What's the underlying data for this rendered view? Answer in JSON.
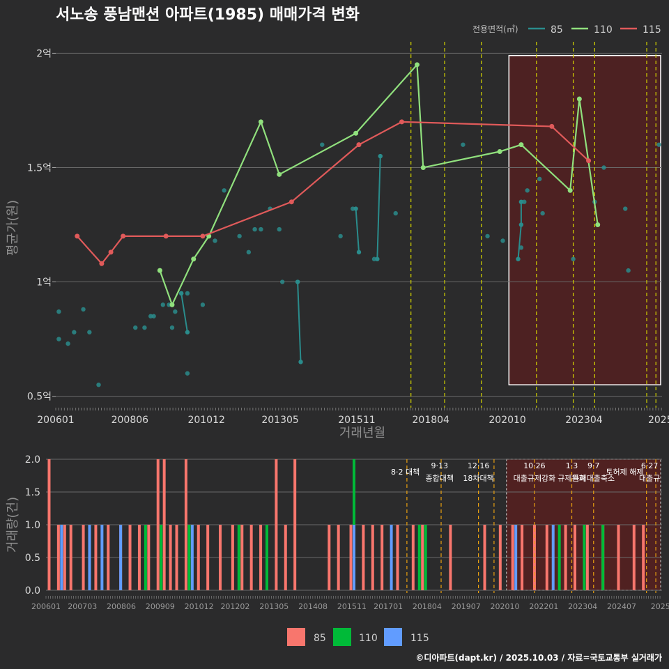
{
  "colors": {
    "background": "#2b2b2c",
    "s85_line": "#2a8c8c",
    "s110_line": "#90e07d",
    "s115_line": "#e05a5a",
    "bar_85": "#f8766d",
    "bar_110": "#00ba38",
    "bar_115": "#619cff",
    "highlight": "#5a1f1f",
    "vline_main": "#d4d400",
    "vline_sub": "#e8a010"
  },
  "title": "서노송 풍남맨션 아파트(1985) 매매가격 변화",
  "legend": {
    "title": "전용면적(㎡)",
    "items": [
      {
        "label": "85",
        "color": "#2a8c8c"
      },
      {
        "label": "110",
        "color": "#90e07d"
      },
      {
        "label": "115",
        "color": "#e05a5a"
      }
    ]
  },
  "bottom_legend": [
    {
      "label": "85",
      "color": "#f8766d"
    },
    {
      "label": "110",
      "color": "#00ba38"
    },
    {
      "label": "115",
      "color": "#619cff"
    }
  ],
  "caption": "©디아파트(dapt.kr) / 2025.10.03 / 자료=국토교통부 실거래가",
  "chart_data": [
    {
      "type": "line",
      "title": "서노송 풍남맨션 아파트(1985) 매매가격 변화",
      "xlabel": "거래년월",
      "ylabel": "평균가(원)",
      "xlim": [
        2006.0,
        2025.8
      ],
      "ylim": [
        0.5,
        2.0
      ],
      "x_tick_values": [
        2006.0,
        2008.42,
        2010.92,
        2013.33,
        2015.83,
        2018.25,
        2020.75,
        2023.25,
        2025.75
      ],
      "x_tick_labels": [
        "200601",
        "200806",
        "201012",
        "201305",
        "201511",
        "201804",
        "202010",
        "202304",
        "2025"
      ],
      "y_tick_values": [
        0.5,
        1.0,
        1.5,
        2.0
      ],
      "y_tick_labels": [
        "0.5억",
        "1억",
        "1.5억",
        "2억"
      ],
      "vlines": [
        2017.6,
        2018.7,
        2019.9,
        2021.7,
        2022.9,
        2023.6,
        2025.3,
        2025.6
      ],
      "highlight_range": [
        2020.8,
        2025.8
      ],
      "series": [
        {
          "name": "85",
          "mode": "points",
          "points": [
            [
              2006.1,
              0.87
            ],
            [
              2006.1,
              0.75
            ],
            [
              2006.4,
              0.73
            ],
            [
              2006.6,
              0.78
            ],
            [
              2006.9,
              0.88
            ],
            [
              2007.1,
              0.78
            ],
            [
              2007.4,
              0.55
            ],
            [
              2008.6,
              0.8
            ],
            [
              2008.9,
              0.8
            ],
            [
              2009.1,
              0.85
            ],
            [
              2009.2,
              0.85
            ],
            [
              2009.5,
              0.9
            ],
            [
              2009.7,
              0.9
            ],
            [
              2009.8,
              0.8
            ],
            [
              2009.8,
              0.9
            ],
            [
              2009.9,
              0.87
            ],
            [
              2010.1,
              0.95
            ],
            [
              2010.3,
              0.95
            ],
            [
              2010.3,
              0.6
            ],
            [
              2010.8,
              0.9
            ],
            [
              2011.2,
              1.18
            ],
            [
              2011.5,
              1.4
            ],
            [
              2012.0,
              1.2
            ],
            [
              2012.3,
              1.13
            ],
            [
              2012.5,
              1.23
            ],
            [
              2012.7,
              1.23
            ],
            [
              2013.0,
              1.32
            ],
            [
              2013.3,
              1.23
            ],
            [
              2013.4,
              1.0
            ],
            [
              2013.9,
              1.0
            ],
            [
              2014.7,
              1.6
            ],
            [
              2015.3,
              1.2
            ],
            [
              2015.7,
              1.32
            ],
            [
              2016.4,
              1.1
            ],
            [
              2017.1,
              1.3
            ],
            [
              2019.3,
              1.6
            ],
            [
              2020.1,
              1.2
            ],
            [
              2020.6,
              1.18
            ],
            [
              2021.2,
              1.15
            ],
            [
              2021.3,
              1.35
            ],
            [
              2021.4,
              1.4
            ],
            [
              2021.8,
              1.45
            ],
            [
              2021.9,
              1.3
            ],
            [
              2022.9,
              1.1
            ],
            [
              2023.6,
              1.35
            ],
            [
              2023.9,
              1.5
            ],
            [
              2024.6,
              1.32
            ],
            [
              2024.7,
              1.05
            ],
            [
              2025.7,
              1.6
            ]
          ]
        },
        {
          "name": "85",
          "mode": "segments",
          "segments": [
            [
              [
                2010.1,
                0.95
              ],
              [
                2010.3,
                0.78
              ]
            ],
            [
              [
                2013.9,
                1.0
              ],
              [
                2014.0,
                0.65
              ]
            ],
            [
              [
                2015.8,
                1.32
              ],
              [
                2015.9,
                1.13
              ]
            ],
            [
              [
                2016.5,
                1.1
              ],
              [
                2016.6,
                1.55
              ]
            ],
            [
              [
                2021.1,
                1.1
              ],
              [
                2021.2,
                1.25
              ],
              [
                2021.2,
                1.35
              ]
            ]
          ]
        },
        {
          "name": "110",
          "mode": "line",
          "points": [
            [
              2009.4,
              1.05
            ],
            [
              2009.8,
              0.9
            ],
            [
              2010.5,
              1.1
            ],
            [
              2011.0,
              1.2
            ],
            [
              2012.7,
              1.7
            ],
            [
              2013.3,
              1.47
            ],
            [
              2015.8,
              1.65
            ],
            [
              2017.8,
              1.95
            ],
            [
              2018.0,
              1.5
            ],
            [
              2020.5,
              1.57
            ],
            [
              2021.2,
              1.6
            ],
            [
              2022.8,
              1.4
            ],
            [
              2023.1,
              1.8
            ],
            [
              2023.7,
              1.25
            ]
          ]
        },
        {
          "name": "115",
          "mode": "line",
          "points": [
            [
              2006.7,
              1.2
            ],
            [
              2007.5,
              1.08
            ],
            [
              2007.8,
              1.13
            ],
            [
              2008.2,
              1.2
            ],
            [
              2009.6,
              1.2
            ],
            [
              2010.8,
              1.2
            ],
            [
              2013.7,
              1.35
            ],
            [
              2015.9,
              1.6
            ],
            [
              2017.3,
              1.7
            ],
            [
              2022.2,
              1.68
            ],
            [
              2023.4,
              1.53
            ]
          ]
        }
      ]
    },
    {
      "type": "bar",
      "xlabel": "",
      "ylabel": "거래량(건)",
      "xlim": [
        2006.0,
        2025.8
      ],
      "ylim": [
        0,
        2.0
      ],
      "y_tick_values": [
        0,
        0.5,
        1.0,
        1.5,
        2.0
      ],
      "y_tick_labels": [
        "0.0",
        "0.5",
        "1.0",
        "1.5",
        "2.0"
      ],
      "x_tick_values": [
        2006.0,
        2007.17,
        2008.42,
        2009.67,
        2010.92,
        2012.08,
        2013.33,
        2014.58,
        2015.83,
        2017.0,
        2018.25,
        2019.5,
        2020.75,
        2022.0,
        2023.25,
        2024.5,
        2025.75
      ],
      "x_tick_labels": [
        "200601",
        "200703",
        "200806",
        "200909",
        "201012",
        "201202",
        "201305",
        "201408",
        "201511",
        "201701",
        "201804",
        "201907",
        "202010",
        "202201",
        "202304",
        "202407",
        "2025"
      ],
      "vlines": [
        2017.6,
        2018.7,
        2019.9,
        2020.4,
        2021.7,
        2022.9,
        2023.6,
        2025.3,
        2025.6
      ],
      "highlight_range": [
        2020.8,
        2025.8
      ],
      "annotations": [
        {
          "x": 2017.55,
          "date": "",
          "text": "8·2 대책"
        },
        {
          "x": 2018.65,
          "date": "9·13",
          "text": "종합대책"
        },
        {
          "x": 2019.9,
          "date": "12·16",
          "text": "18차대책"
        },
        {
          "x": 2021.7,
          "date": "10·26",
          "text": "대출규제강화"
        },
        {
          "x": 2022.9,
          "date": "1·3",
          "text": "규제완화"
        },
        {
          "x": 2023.6,
          "date": "9·7",
          "text": "특례대출축소"
        },
        {
          "x": 2024.6,
          "date": "",
          "text": "토허제 해제"
        },
        {
          "x": 2025.4,
          "date": "6·27",
          "text": "대출규"
        }
      ],
      "series": [
        {
          "name": "85",
          "x": [
            2006.1,
            2006.4,
            2006.6,
            2006.8,
            2007.2,
            2007.4,
            2007.6,
            2008.0,
            2008.4,
            2008.7,
            2009.0,
            2009.3,
            2009.6,
            2009.8,
            2010.0,
            2010.2,
            2010.5,
            2010.9,
            2011.2,
            2011.6,
            2012.0,
            2012.3,
            2012.6,
            2012.9,
            2013.4,
            2013.7,
            2014.0,
            2015.1,
            2015.4,
            2015.8,
            2016.2,
            2016.5,
            2016.8,
            2017.3,
            2017.8,
            2018.1,
            2019.0,
            2020.1,
            2020.6,
            2021.0,
            2021.3,
            2021.7,
            2022.1,
            2022.7,
            2023.0,
            2023.4,
            2023.9,
            2024.4,
            2024.9,
            2025.2
          ],
          "values": [
            2,
            1,
            1,
            1,
            1,
            1,
            1,
            1,
            1,
            1,
            1,
            1,
            2,
            2,
            1,
            1,
            2,
            1,
            1,
            1,
            1,
            1,
            1,
            1,
            2,
            1,
            2,
            1,
            1,
            1,
            1,
            1,
            1,
            1,
            1,
            1,
            1,
            1,
            1,
            1,
            1,
            1,
            1,
            1,
            1,
            1,
            1,
            1,
            1,
            1
          ]
        },
        {
          "name": "110",
          "x": [
            2009.2,
            2009.7,
            2010.6,
            2012.2,
            2013.1,
            2015.9,
            2018.0,
            2018.2,
            2022.5,
            2023.3,
            2023.9
          ],
          "values": [
            1,
            1,
            1,
            1,
            1,
            2,
            1,
            1,
            1,
            1,
            1
          ]
        },
        {
          "name": "115",
          "x": [
            2006.5,
            2007.4,
            2007.8,
            2008.4,
            2010.7,
            2015.9,
            2017.1,
            2021.1,
            2022.3
          ],
          "values": [
            1,
            1,
            1,
            1,
            1,
            1,
            1,
            1,
            1
          ]
        }
      ]
    }
  ]
}
